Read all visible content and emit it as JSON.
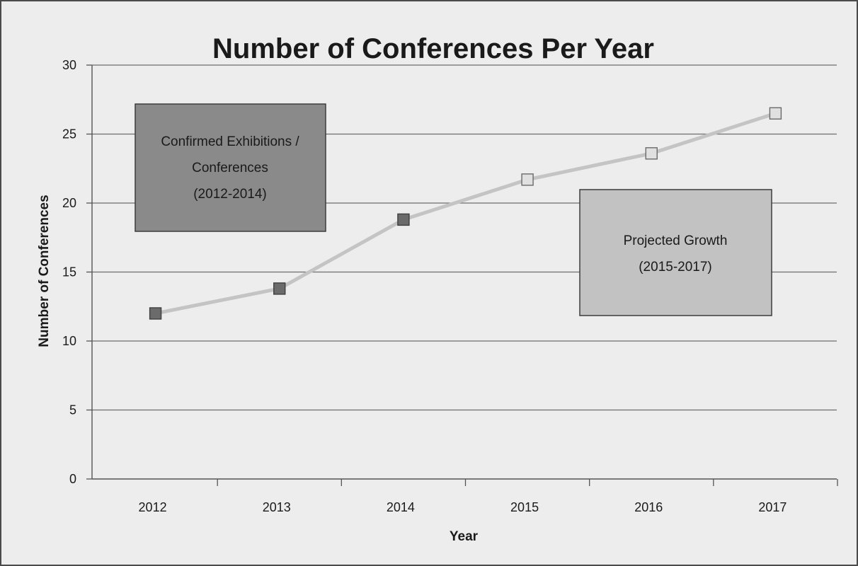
{
  "chart_data": {
    "type": "line",
    "title": "Number of Conferences Per Year",
    "xlabel": "Year",
    "ylabel": "Number of Conferences",
    "categories": [
      "2012",
      "2013",
      "2014",
      "2015",
      "2016",
      "2017"
    ],
    "yticks": [
      "0",
      "5",
      "10",
      "15",
      "20",
      "25",
      "30"
    ],
    "ylim": [
      0,
      30
    ],
    "grid": true,
    "series": [
      {
        "values": [
          12,
          13.8,
          18.8,
          21.7,
          23.6,
          26.5
        ]
      }
    ],
    "marker_styles": [
      "confirmed",
      "confirmed",
      "confirmed",
      "projected",
      "projected",
      "projected"
    ],
    "annotations": [
      {
        "id": "confirmed",
        "lines": [
          "Confirmed Exhibitions /",
          "Conferences",
          "(2012-2014)"
        ]
      },
      {
        "id": "projected",
        "lines": [
          "Projected Growth",
          "(2015-2017)"
        ]
      }
    ],
    "colors": {
      "line": "#c4c4c4",
      "confirmed_marker": "#6b6b6b",
      "projected_marker": "#e0e0e0",
      "confirmed_box": "#8a8a8a",
      "projected_box": "#c2c2c2",
      "grid": "#6e6e6e",
      "background": "#ededed"
    }
  }
}
